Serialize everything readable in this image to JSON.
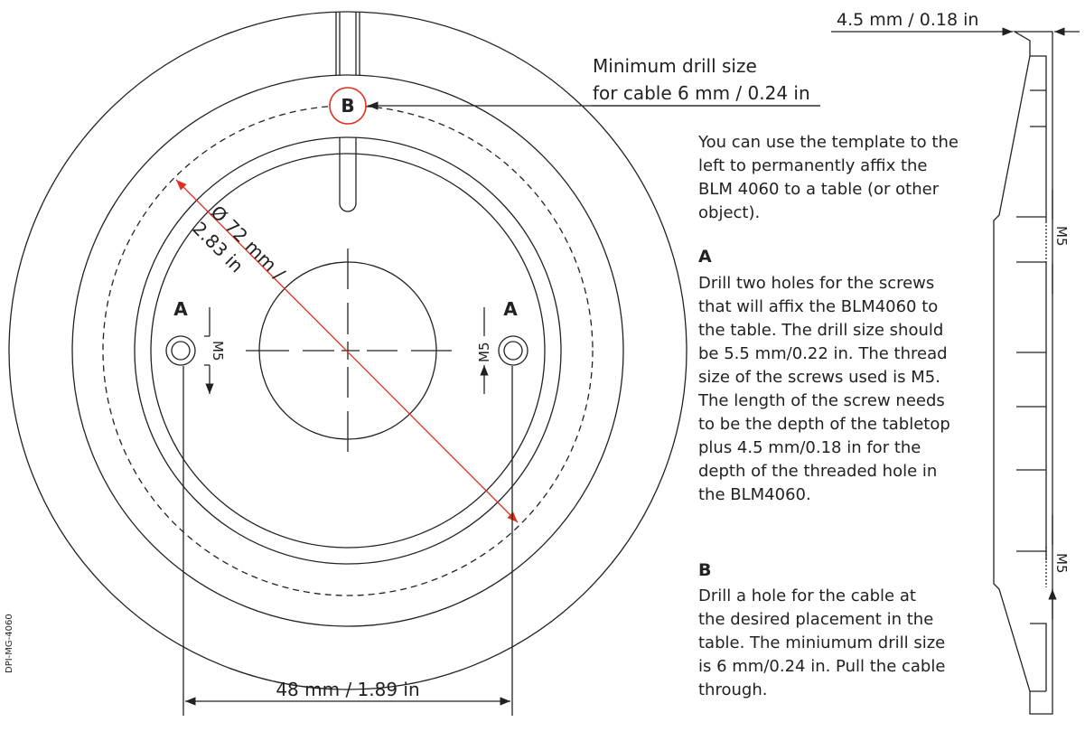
{
  "plan": {
    "labels": {
      "a_left": "A",
      "a_right": "A",
      "b": "B",
      "m5_left": "M5",
      "m5_right": "M5"
    },
    "diameter": [
      "Ø 72 mm /",
      "2.83 in"
    ],
    "spacing": "48 mm / 1.89 in",
    "drill_note": [
      "Minimum drill size",
      "for cable 6 mm / 0.24 in"
    ]
  },
  "side_view": {
    "thickness": "4.5 mm / 0.18 in",
    "thread_top": "M5",
    "thread_bottom": "M5"
  },
  "instructions": {
    "intro": [
      "You can use the template to the",
      "left to permanently affix the",
      "BLM 4060 to a table (or other",
      "object)."
    ],
    "sections": [
      {
        "heading": "A",
        "lines": [
          "Drill two holes for the screws",
          "that will affix the BLM4060 to",
          "the table. The drill size should",
          "be 5.5 mm/0.22 in. The thread",
          "size of the screws used is M5.",
          "The length of the screw needs",
          "to be the depth of the tabletop",
          "plus 4.5 mm/0.18 in for the",
          "depth of the threaded hole in",
          "the BLM4060."
        ]
      },
      {
        "heading": "B",
        "lines": [
          "Drill a hole for the cable at",
          "the desired placement in the",
          "table. The miniumum drill size",
          "is 6 mm/0.24 in. Pull the cable",
          "through."
        ]
      }
    ]
  },
  "doc_id": "DPI-MG-4060"
}
